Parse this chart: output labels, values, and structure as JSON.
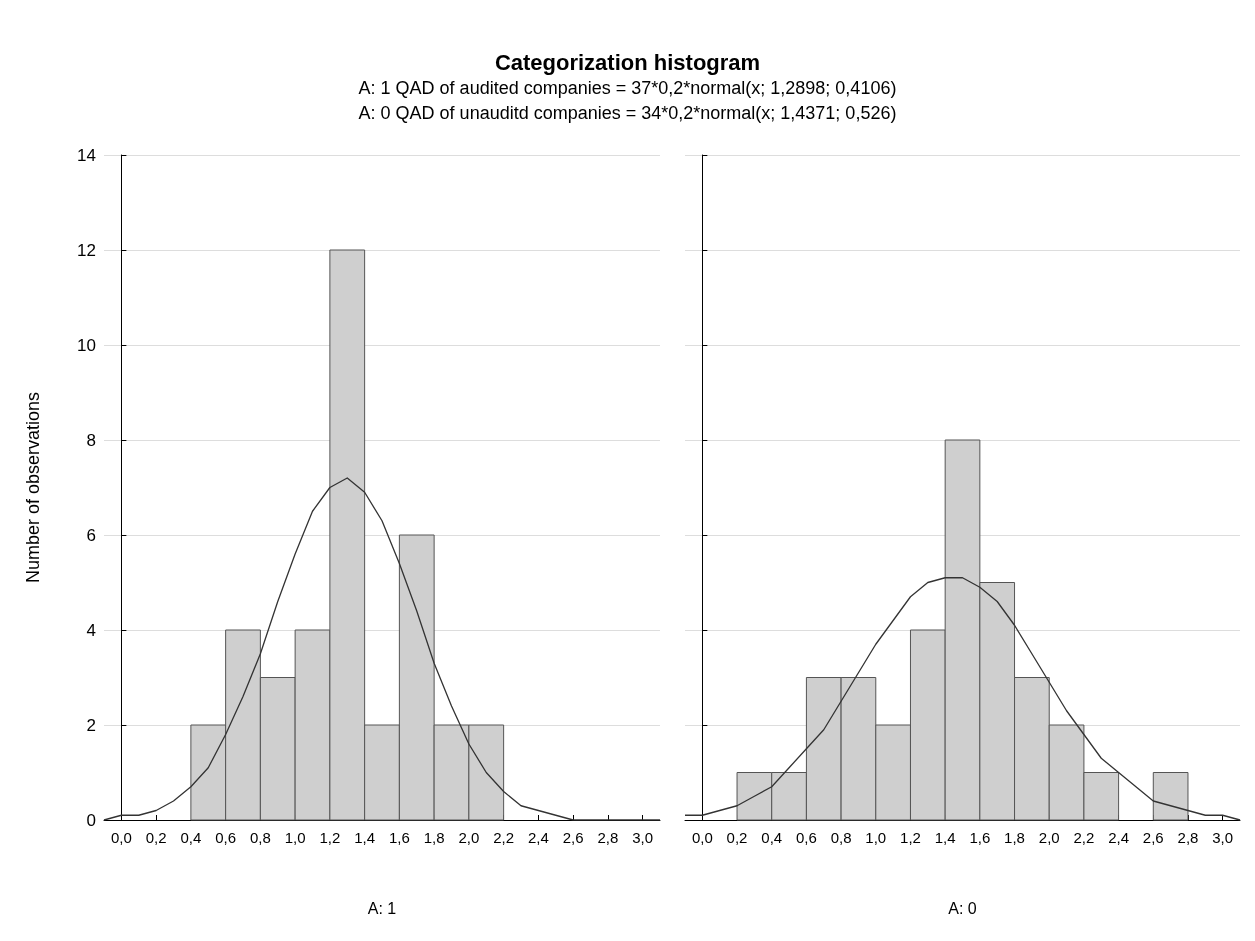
{
  "chart_data": [
    {
      "type": "histogram",
      "title": "Categorization histogram",
      "subtitle": "A: 1 QAD of audited companies = 37*0,2*normal(x; 1,2898; 0,4106)\nA: 0 QAD of unauditd companies = 34*0,2*normal(x; 1,4371; 0,526)",
      "xlabel": "A: 1",
      "ylabel": "Number of observations",
      "xlim": [
        -0.1,
        3.1
      ],
      "ylim": [
        0,
        14
      ],
      "yticks": [
        0,
        2,
        4,
        6,
        8,
        10,
        12,
        14
      ],
      "xticks": [
        {
          "value": 0,
          "label": "0,0"
        },
        {
          "value": 0.2,
          "label": "0,2"
        },
        {
          "value": 0.4,
          "label": "0,4"
        },
        {
          "value": 0.6,
          "label": "0,6"
        },
        {
          "value": 0.8,
          "label": "0,8"
        },
        {
          "value": 1,
          "label": "1,0"
        },
        {
          "value": 1.2,
          "label": "1,2"
        },
        {
          "value": 1.4,
          "label": "1,4"
        },
        {
          "value": 1.6,
          "label": "1,6"
        },
        {
          "value": 1.8,
          "label": "1,8"
        },
        {
          "value": 2,
          "label": "2,0"
        },
        {
          "value": 2.2,
          "label": "2,2"
        },
        {
          "value": 2.4,
          "label": "2,4"
        },
        {
          "value": 2.6,
          "label": "2,6"
        },
        {
          "value": 2.8,
          "label": "2,8"
        },
        {
          "value": 3,
          "label": "3,0"
        }
      ],
      "grid": "y",
      "series": [
        {
          "type": "histogram",
          "color": "#cfcfcf",
          "bins": [
            0.4,
            0.6,
            0.8,
            1.0,
            1.2,
            1.4,
            1.6,
            1.8,
            2.0,
            2.2
          ],
          "values": [
            2,
            4,
            3,
            4,
            12,
            2,
            6,
            2,
            2
          ]
        },
        {
          "type": "line",
          "color": "#333333",
          "x": [
            -0.1,
            0,
            0.1,
            0.2,
            0.3,
            0.4,
            0.5,
            0.6,
            0.7,
            0.8,
            0.9,
            1.0,
            1.1,
            1.2,
            1.3,
            1.4,
            1.5,
            1.6,
            1.7,
            1.8,
            1.9,
            2.0,
            2.1,
            2.2,
            2.3,
            2.4,
            2.5,
            2.6,
            2.7,
            2.8,
            2.9,
            3.0,
            3.1
          ],
          "values": [
            0.0,
            0.1,
            0.1,
            0.2,
            0.4,
            0.7,
            1.1,
            1.8,
            2.6,
            3.5,
            4.6,
            5.6,
            6.5,
            7.0,
            7.2,
            6.9,
            6.3,
            5.4,
            4.4,
            3.3,
            2.4,
            1.6,
            1.0,
            0.6,
            0.3,
            0.2,
            0.1,
            0.0,
            0.0,
            0.0,
            0.0,
            0.0,
            0.0
          ]
        }
      ]
    },
    {
      "type": "histogram",
      "xlabel": "A: 0",
      "xlim": [
        -0.1,
        3.1
      ],
      "ylim": [
        0,
        14
      ],
      "yticks": [
        0,
        2,
        4,
        6,
        8,
        10,
        12,
        14
      ],
      "tick_labels": "x",
      "xticks": [
        {
          "value": 0,
          "label": "0,0"
        },
        {
          "value": 0.2,
          "label": "0,2"
        },
        {
          "value": 0.4,
          "label": "0,4"
        },
        {
          "value": 0.6,
          "label": "0,6"
        },
        {
          "value": 0.8,
          "label": "0,8"
        },
        {
          "value": 1,
          "label": "1,0"
        },
        {
          "value": 1.2,
          "label": "1,2"
        },
        {
          "value": 1.4,
          "label": "1,4"
        },
        {
          "value": 1.6,
          "label": "1,6"
        },
        {
          "value": 1.8,
          "label": "1,8"
        },
        {
          "value": 2,
          "label": "2,0"
        },
        {
          "value": 2.2,
          "label": "2,2"
        },
        {
          "value": 2.4,
          "label": "2,4"
        },
        {
          "value": 2.6,
          "label": "2,6"
        },
        {
          "value": 2.8,
          "label": "2,8"
        },
        {
          "value": 3,
          "label": "3,0"
        }
      ],
      "grid": "y",
      "series": [
        {
          "type": "histogram",
          "color": "#cfcfcf",
          "bins": [
            0.2,
            0.4,
            0.6,
            0.8,
            1.0,
            1.2,
            1.4,
            1.6,
            1.8,
            2.0,
            2.2,
            2.4,
            2.6,
            2.8
          ],
          "values": [
            1,
            1,
            3,
            3,
            2,
            4,
            8,
            5,
            3,
            2,
            1,
            0,
            1
          ]
        },
        {
          "type": "line",
          "color": "#333333",
          "x": [
            -0.1,
            0,
            0.1,
            0.2,
            0.3,
            0.4,
            0.5,
            0.6,
            0.7,
            0.8,
            0.9,
            1.0,
            1.1,
            1.2,
            1.3,
            1.4,
            1.5,
            1.6,
            1.7,
            1.8,
            1.9,
            2.0,
            2.1,
            2.2,
            2.3,
            2.4,
            2.5,
            2.6,
            2.7,
            2.8,
            2.9,
            3.0,
            3.1
          ],
          "values": [
            0.1,
            0.1,
            0.2,
            0.3,
            0.5,
            0.7,
            1.1,
            1.5,
            1.9,
            2.5,
            3.1,
            3.7,
            4.2,
            4.7,
            5.0,
            5.1,
            5.1,
            4.9,
            4.6,
            4.1,
            3.5,
            2.9,
            2.3,
            1.8,
            1.3,
            1.0,
            0.7,
            0.4,
            0.3,
            0.2,
            0.1,
            0.1,
            0.0
          ]
        }
      ]
    }
  ]
}
